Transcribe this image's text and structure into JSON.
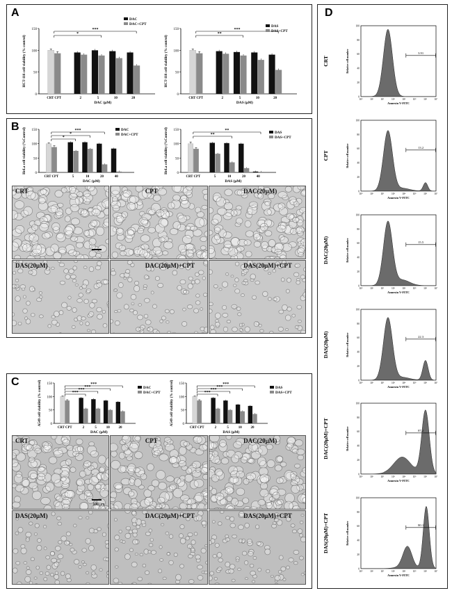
{
  "panels": {
    "A": "A",
    "B": "B",
    "C": "C",
    "D": "D"
  },
  "panel_A": {
    "charts": [
      {
        "ylabel": "HCT-116 cell viability (% control)",
        "xlabel": "DAC (μM)",
        "legend": [
          "DAC",
          "DAC+CPT"
        ],
        "ctrl_labels": [
          "CRT",
          "CPT"
        ],
        "ctrl_values": [
          100,
          93
        ],
        "ctrl_err": [
          3,
          4
        ],
        "categories": [
          "2",
          "5",
          "10",
          "20"
        ],
        "series_a": [
          95,
          100,
          98,
          95
        ],
        "series_b": [
          90,
          88,
          82,
          65
        ],
        "ylim": [
          0,
          150
        ],
        "yticks": [
          0,
          50,
          100,
          150
        ],
        "sig": [
          "*",
          "***"
        ]
      },
      {
        "ylabel": "HCT-116 cell viability (% control)",
        "xlabel": "DAS (μM)",
        "legend": [
          "DAS",
          "DAS+CPT"
        ],
        "ctrl_labels": [
          "CRT",
          "CPT"
        ],
        "ctrl_values": [
          100,
          93
        ],
        "ctrl_err": [
          3,
          4
        ],
        "categories": [
          "2",
          "5",
          "10",
          "20"
        ],
        "series_a": [
          98,
          96,
          95,
          90
        ],
        "series_b": [
          92,
          88,
          78,
          55
        ],
        "ylim": [
          0,
          150
        ],
        "yticks": [
          0,
          50,
          100,
          150
        ],
        "sig": [
          "**",
          "***"
        ]
      }
    ]
  },
  "panel_B": {
    "charts": [
      {
        "ylabel": "HeLa cell viability (%Control)",
        "xlabel": "DAC (μM)",
        "legend": [
          "DAC",
          "DAC+CPT"
        ],
        "ctrl_labels": [
          "CRT",
          "CPT"
        ],
        "ctrl_values": [
          100,
          88
        ],
        "ctrl_err": [
          3,
          5
        ],
        "categories": [
          "5",
          "10",
          "20",
          "40"
        ],
        "series_a": [
          105,
          105,
          100,
          83
        ],
        "series_b": [
          75,
          82,
          28,
          3
        ],
        "ylim": [
          0,
          150
        ],
        "yticks": [
          0,
          50,
          100,
          150
        ],
        "sig": [
          "*",
          "*",
          "***"
        ]
      },
      {
        "ylabel": "HeLa cell viability (%Control)",
        "xlabel": "DAS (μM)",
        "legend": [
          "DAS",
          "DAS+CPT"
        ],
        "ctrl_labels": [
          "CRT",
          "CPT"
        ],
        "ctrl_values": [
          100,
          82
        ],
        "ctrl_err": [
          6,
          4
        ],
        "categories": [
          "5",
          "10",
          "20",
          "40"
        ],
        "series_a": [
          103,
          102,
          100,
          3
        ],
        "series_b": [
          65,
          35,
          15,
          2
        ],
        "ylim": [
          0,
          150
        ],
        "yticks": [
          0,
          50,
          100,
          150
        ],
        "sig": [
          "**",
          "**"
        ]
      }
    ],
    "images": [
      "CRT",
      "CPT",
      "DAC(20μM)",
      "DAS(20μM)",
      "DAC(20μM)+CPT",
      "DAS(20μM)+CPT"
    ]
  },
  "panel_C": {
    "charts": [
      {
        "ylabel": "A549 cell viability (% control)",
        "xlabel": "DAC (μM)",
        "legend": [
          "DAC",
          "DAC+CPT"
        ],
        "ctrl_labels": [
          "CRT",
          "CPT"
        ],
        "ctrl_values": [
          100,
          85
        ],
        "ctrl_err": [
          2,
          3
        ],
        "categories": [
          "2",
          "5",
          "10",
          "20"
        ],
        "series_a": [
          95,
          90,
          85,
          80
        ],
        "series_b": [
          55,
          55,
          50,
          45
        ],
        "ylim": [
          0,
          150
        ],
        "yticks": [
          0,
          50,
          100,
          150
        ],
        "sig": [
          "***",
          "***",
          "***",
          "***"
        ]
      },
      {
        "ylabel": "A549 cell viability (% control)",
        "xlabel": "DAS (μM)",
        "legend": [
          "DAS",
          "DAS+CPT"
        ],
        "ctrl_labels": [
          "CRT",
          "CPT"
        ],
        "ctrl_values": [
          100,
          85
        ],
        "ctrl_err": [
          2,
          3
        ],
        "categories": [
          "2",
          "5",
          "10",
          "20"
        ],
        "series_a": [
          95,
          85,
          70,
          65
        ],
        "series_b": [
          55,
          50,
          45,
          35
        ],
        "ylim": [
          0,
          150
        ],
        "yticks": [
          0,
          50,
          100,
          150
        ],
        "sig": [
          "***",
          "***",
          "***",
          "***"
        ]
      }
    ],
    "images": [
      "CRT",
      "CPT",
      "DAC(20μM)",
      "DAS(20μM)",
      "DAC(20μM)+CPT",
      "DAS(20μM)+CPT"
    ],
    "scale_bar": "100 μm"
  },
  "panel_D": {
    "ylabel": "Relative cell number",
    "xlabel": "Annexin V-FITC",
    "yticks": [
      "0",
      "20",
      "40",
      "60",
      "80",
      "100"
    ],
    "xticks": [
      "10⁰",
      "10¹",
      "10²",
      "10³",
      "10⁴",
      "10⁵",
      "10⁶",
      "10⁷"
    ],
    "histograms": [
      {
        "label": "CRT",
        "gate": "3.91"
      },
      {
        "label": "CPT",
        "gate": "13.2"
      },
      {
        "label": "DAC(20μM)",
        "gate": "15.5"
      },
      {
        "label": "DAS(20μM)",
        "gate": "22.3"
      },
      {
        "label": "DAC(20μM)+CPT",
        "gate": "87.2"
      },
      {
        "label": "DAS(20μM)+CPT",
        "gate": "80.1"
      }
    ]
  },
  "colors": {
    "dark": "#111111",
    "grey": "#8a8a8a",
    "light": "#d6d6d6",
    "fill": "#6b6b6b"
  }
}
